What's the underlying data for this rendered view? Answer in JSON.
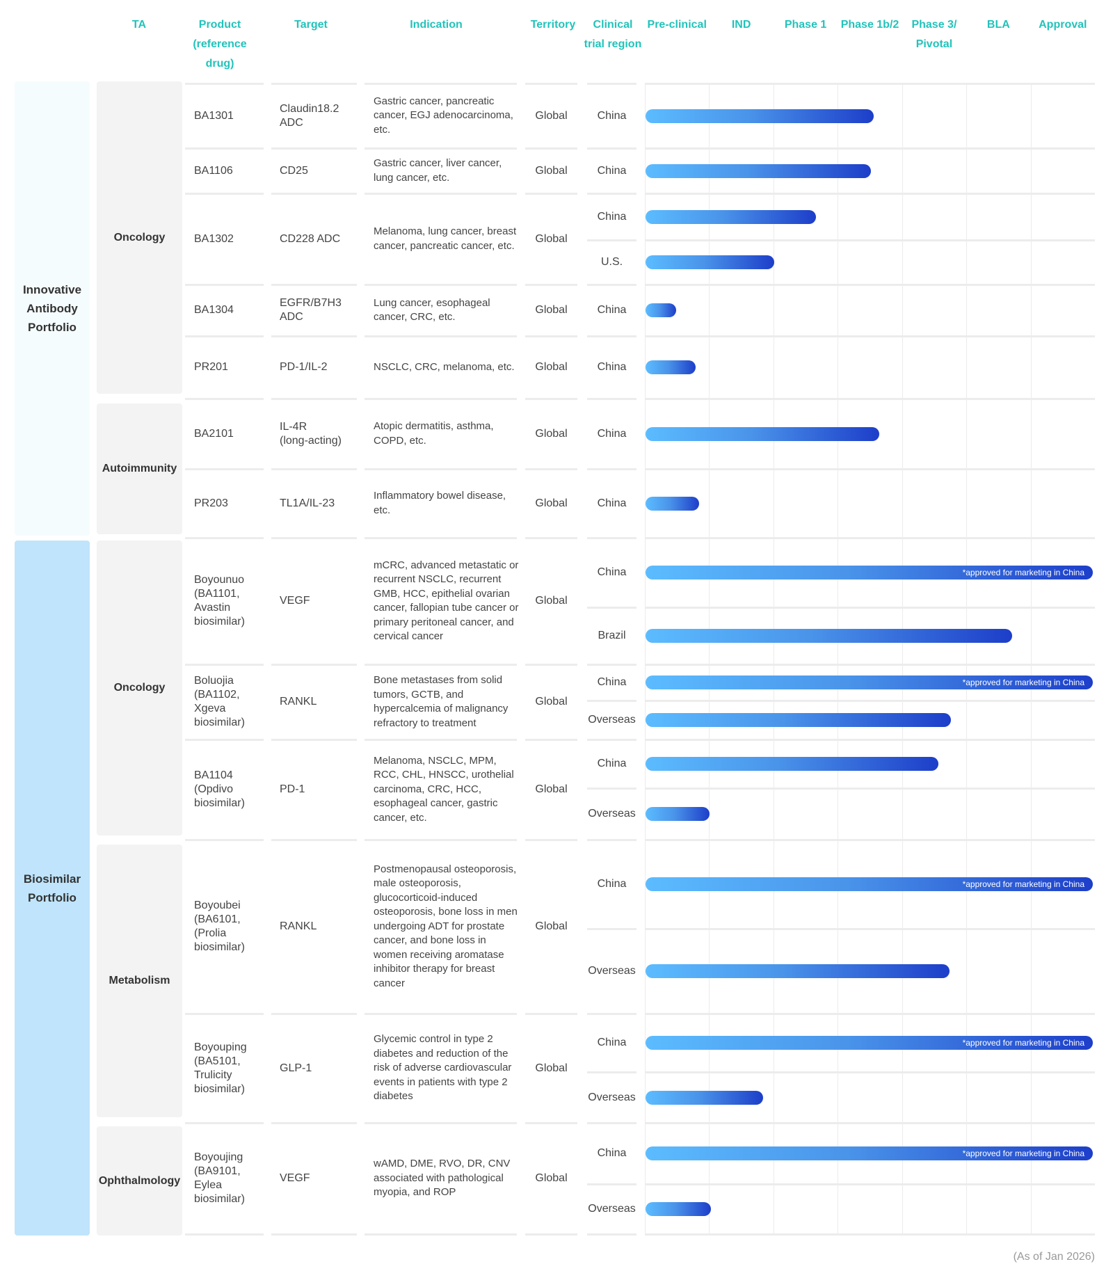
{
  "header": {
    "ta": "TA",
    "product": "Product\n(reference\ndrug)",
    "target": "Target",
    "indication": "Indication",
    "territory": "Territory",
    "region": "Clinical\ntrial region",
    "stages": [
      "Pre-clinical",
      "IND",
      "Phase 1",
      "Phase 1b/2",
      "Phase 3/\nPivotal",
      "BLA",
      "Approval"
    ]
  },
  "sections": [
    {
      "label": "Innovative\nAntibody\nPortfolio",
      "color": "#f5fcfd",
      "groups": [
        {
          "label": "Oncology"
        },
        {
          "label": "Autoimmunity"
        }
      ]
    },
    {
      "label": "Biosimilar\nPortfolio",
      "color": "#bfe4fb",
      "groups": [
        {
          "label": "Oncology"
        },
        {
          "label": "Metabolism"
        },
        {
          "label": "Ophthalmology"
        }
      ]
    }
  ],
  "colors": {
    "header": "#22c3bb",
    "bar_start": "#5cbcff",
    "bar_end": "#1d3ec9"
  },
  "chart_data": {
    "type": "bar",
    "orientation": "horizontal",
    "stages": [
      "Pre-clinical",
      "IND",
      "Phase 1",
      "Phase 1b/2",
      "Phase 3/Pivotal",
      "BLA",
      "Approval"
    ],
    "value_unit": "stages completed (0-7)",
    "xlim": [
      0,
      7
    ],
    "products": [
      {
        "product": "BA1301",
        "target": "Claudin18.2 ADC",
        "indication": "Gastric cancer, pancreatic cancer, EGJ adenocarcinoma, etc.",
        "territory": "Global",
        "regions": [
          {
            "name": "China",
            "progress": 3.55
          }
        ]
      },
      {
        "product": "BA1106",
        "target": "CD25",
        "indication": "Gastric cancer, liver cancer, lung cancer, etc.",
        "territory": "Global",
        "regions": [
          {
            "name": "China",
            "progress": 3.5
          }
        ]
      },
      {
        "product": "BA1302",
        "target": "CD228 ADC",
        "indication": "Melanoma, lung cancer, breast cancer, pancreatic cancer, etc.",
        "territory": "Global",
        "regions": [
          {
            "name": "China",
            "progress": 2.65
          },
          {
            "name": "U.S.",
            "progress": 2.0
          }
        ]
      },
      {
        "product": "BA1304",
        "target": "EGFR/B7H3 ADC",
        "indication": "Lung cancer, esophageal cancer, CRC, etc.",
        "territory": "Global",
        "regions": [
          {
            "name": "China",
            "progress": 0.48
          }
        ]
      },
      {
        "product": "PR201",
        "target": "PD-1/IL-2",
        "indication": "NSCLC, CRC, melanoma, etc.",
        "territory": "Global",
        "regions": [
          {
            "name": "China",
            "progress": 0.78
          }
        ]
      },
      {
        "product": "BA2101",
        "target": "IL-4R\n (long-acting)",
        "indication": "Atopic dermatitis, asthma, COPD, etc.",
        "territory": "Global",
        "regions": [
          {
            "name": "China",
            "progress": 3.64
          }
        ]
      },
      {
        "product": "PR203",
        "target": "TL1A/IL-23",
        "indication": "Inflammatory bowel disease, etc.",
        "territory": "Global",
        "regions": [
          {
            "name": "China",
            "progress": 0.83
          }
        ]
      },
      {
        "product": "Boyounuo\n (BA1101,\nAvastin\nbiosimilar)",
        "target": "VEGF",
        "indication": "mCRC, advanced metastatic or recurrent NSCLC, recurrent GMB, HCC, epithelial ovarian cancer, fallopian tube cancer or primary peritoneal cancer, and cervical cancer",
        "territory": "Global",
        "regions": [
          {
            "name": "China",
            "progress": 7,
            "note": "*approved for marketing in China"
          },
          {
            "name": "Brazil",
            "progress": 5.7
          }
        ]
      },
      {
        "product": "Boluojia\n(BA1102,\nXgeva\nbiosimilar)",
        "target": "RANKL",
        "indication": "Bone metastases from solid tumors, GCTB, and hypercalcemia of malignancy refractory to treatment",
        "territory": "Global",
        "regions": [
          {
            "name": "China",
            "progress": 7,
            "note": "*approved for marketing in China"
          },
          {
            "name": "Overseas",
            "progress": 4.75
          }
        ]
      },
      {
        "product": "BA1104\n(Opdivo\nbiosimilar)",
        "target": "PD-1",
        "indication": "Melanoma, NSCLC, MPM, RCC, CHL, HNSCC, urothelial carcinoma, CRC, HCC, esophageal cancer, gastric cancer, etc.",
        "territory": "Global",
        "regions": [
          {
            "name": "China",
            "progress": 4.55
          },
          {
            "name": "Overseas",
            "progress": 1.0
          }
        ]
      },
      {
        "product": "Boyoubei\n (BA6101,\n(Prolia\nbiosimilar)",
        "target": "RANKL",
        "indication": "Postmenopausal osteoporosis, male osteoporosis, glucocorticoid-induced osteoporosis, bone loss in men undergoing ADT for prostate cancer, and bone loss in women receiving aromatase inhibitor therapy for breast cancer",
        "territory": "Global",
        "regions": [
          {
            "name": "China",
            "progress": 7,
            "note": "*approved for marketing in China"
          },
          {
            "name": "Overseas",
            "progress": 4.73
          }
        ]
      },
      {
        "product": "Boyouping\n(BA5101,\nTrulicity\nbiosimilar)",
        "target": "GLP-1",
        "indication": "Glycemic control in type 2 diabetes and reduction of the risk of adverse cardiovascular events in patients with type 2 diabetes",
        "territory": "Global",
        "regions": [
          {
            "name": "China",
            "progress": 7,
            "note": "*approved for marketing in China"
          },
          {
            "name": "Overseas",
            "progress": 1.83
          }
        ]
      },
      {
        "product": "Boyoujing\n(BA9101,\nEylea\nbiosimilar)",
        "target": "VEGF",
        "indication": "wAMD, DME, RVO, DR, CNV associated with pathological myopia, and ROP",
        "territory": "Global",
        "regions": [
          {
            "name": "China",
            "progress": 7,
            "note": "*approved for marketing in China"
          },
          {
            "name": "Overseas",
            "progress": 1.02
          }
        ]
      }
    ]
  },
  "footer": {
    "note": "(As of Jan 2026)"
  }
}
